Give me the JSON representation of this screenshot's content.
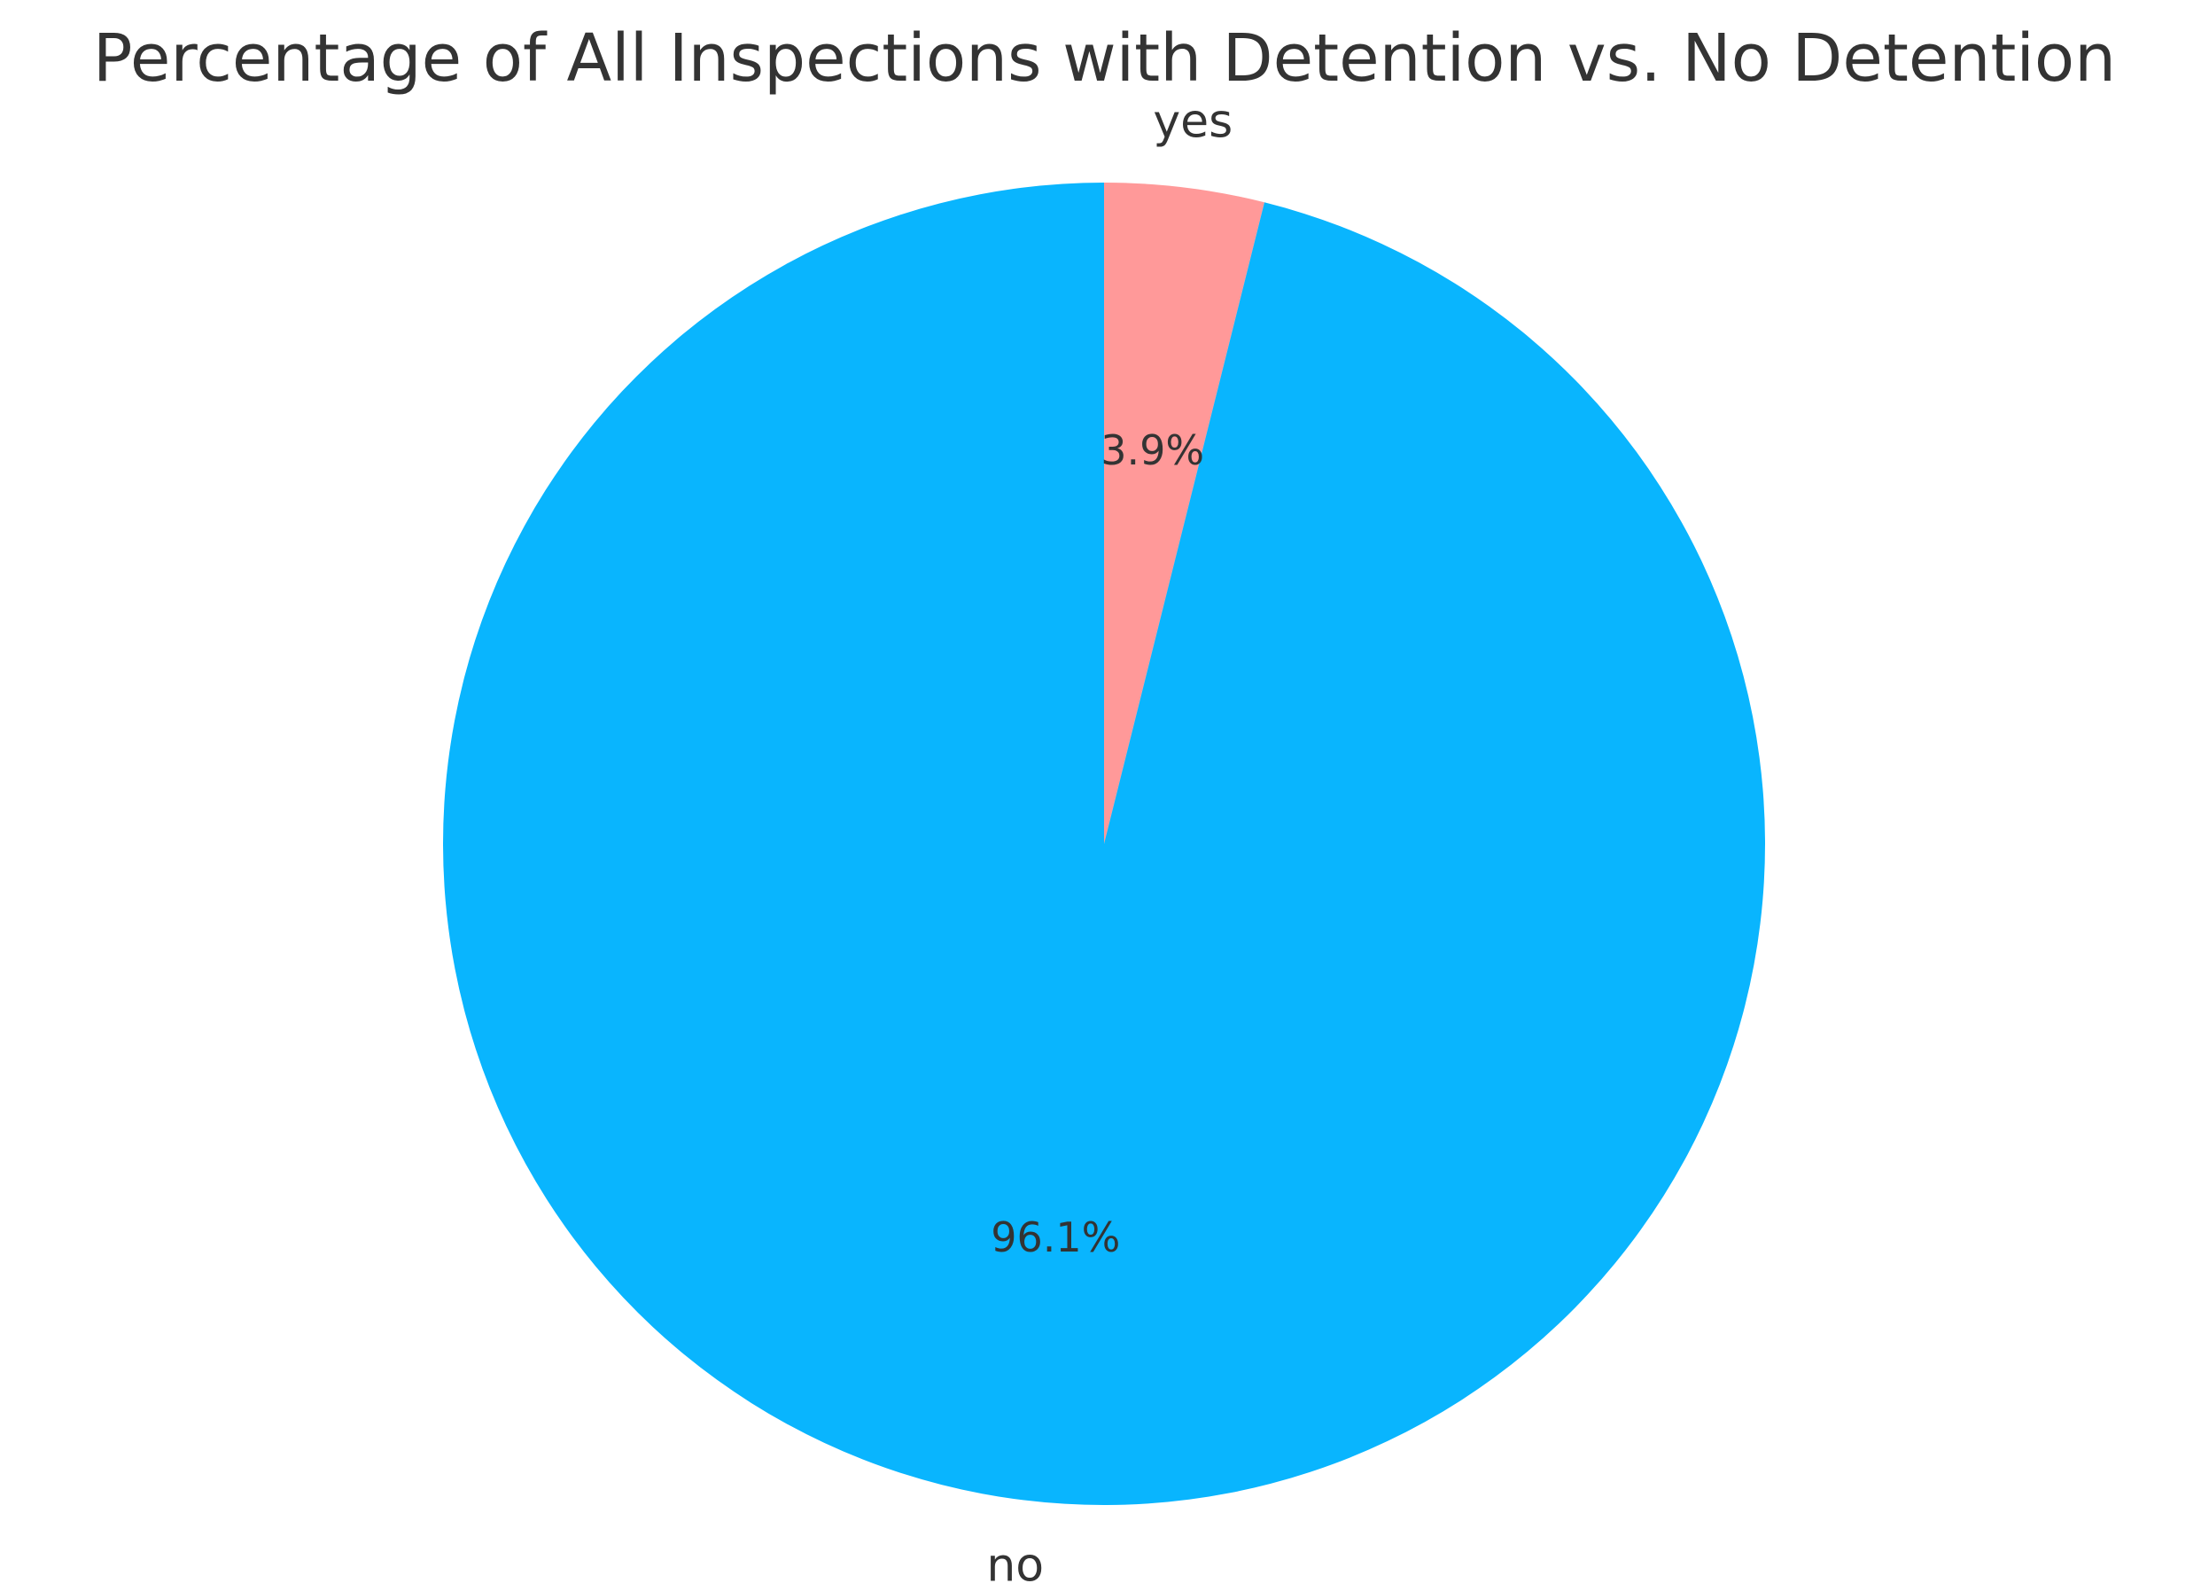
{
  "chart_data": {
    "type": "pie",
    "title": "Percentage of All Inspections with Detention vs. No Detention",
    "labels": [
      "yes",
      "no"
    ],
    "values": [
      3.9,
      96.1
    ],
    "percent_labels": [
      "3.9%",
      "96.1%"
    ],
    "colors": [
      "#ff9999",
      "#09b5fe"
    ],
    "start_angle_deg": 90,
    "direction": "clockwise"
  }
}
